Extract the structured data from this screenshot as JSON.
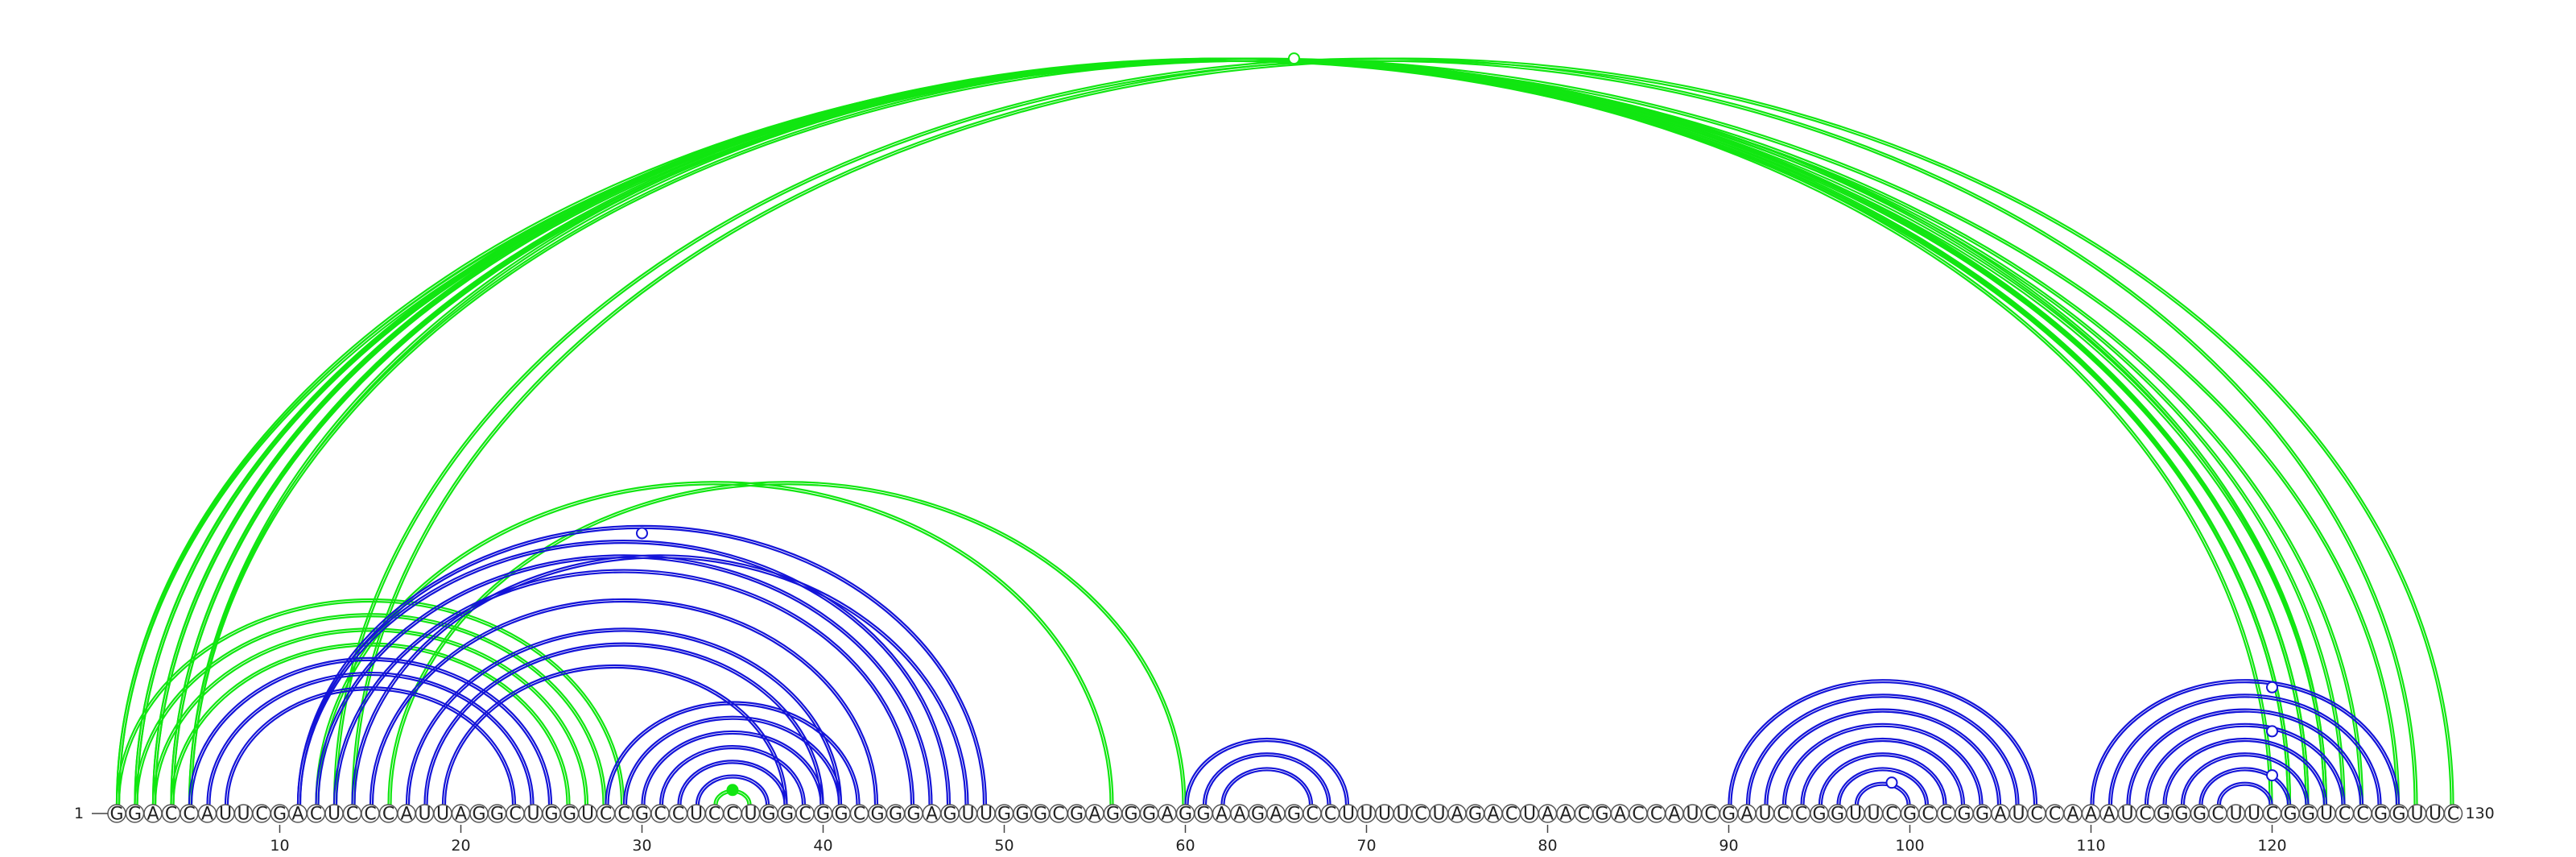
{
  "sequence": "GGACCAUUCGACUCCCAUUAGGCUGGUCCGCCUCCUGGCGGCGGGAGUUGGGCGAGGGAGGAAGAGCCUUUUCUAGACUAACGACCAUCGAUCCGGUUCGCCGGAUCCAAAUCGGGCUUCGGUCCGGUUC",
  "start_label": "1",
  "end_label": "130",
  "tick_labels": [
    "10",
    "20",
    "30",
    "40",
    "50",
    "60",
    "70",
    "80",
    "90",
    "100",
    "110",
    "120"
  ],
  "colors": {
    "green": "#11e611",
    "blue": "#1414d8"
  },
  "green_pairs": [
    [
      1,
      127
    ],
    [
      1,
      125
    ],
    [
      2,
      124
    ],
    [
      2,
      123
    ],
    [
      3,
      122
    ],
    [
      3,
      121
    ],
    [
      4,
      122
    ],
    [
      4,
      121
    ],
    [
      5,
      120
    ],
    [
      5,
      123
    ],
    [
      13,
      128
    ],
    [
      14,
      130
    ],
    [
      1,
      29
    ],
    [
      2,
      28
    ],
    [
      3,
      27
    ],
    [
      4,
      26
    ],
    [
      12,
      56
    ],
    [
      16,
      60
    ],
    [
      34,
      36
    ]
  ],
  "blue_pairs": [
    [
      5,
      25
    ],
    [
      6,
      24
    ],
    [
      7,
      23
    ],
    [
      11,
      47
    ],
    [
      12,
      46
    ],
    [
      13,
      45
    ],
    [
      15,
      43
    ],
    [
      17,
      41
    ],
    [
      18,
      40
    ],
    [
      19,
      38
    ],
    [
      11,
      49
    ],
    [
      14,
      48
    ],
    [
      28,
      42
    ],
    [
      29,
      41
    ],
    [
      30,
      40
    ],
    [
      31,
      39
    ],
    [
      32,
      38
    ],
    [
      33,
      37
    ],
    [
      60,
      69
    ],
    [
      61,
      68
    ],
    [
      62,
      67
    ],
    [
      90,
      107
    ],
    [
      91,
      106
    ],
    [
      92,
      105
    ],
    [
      93,
      104
    ],
    [
      94,
      103
    ],
    [
      95,
      102
    ],
    [
      96,
      101
    ],
    [
      97,
      100
    ],
    [
      110,
      127
    ],
    [
      111,
      126
    ],
    [
      112,
      125
    ],
    [
      113,
      124
    ],
    [
      114,
      123
    ],
    [
      115,
      122
    ],
    [
      116,
      121
    ],
    [
      117,
      120
    ]
  ],
  "markers": [
    {
      "position": 66,
      "color": "green",
      "filled": false,
      "arc": [
        1,
        129
      ]
    },
    {
      "position": 30,
      "color": "blue",
      "filled": false,
      "arc": [
        11,
        48
      ]
    },
    {
      "position": 35,
      "color": "green",
      "filled": true,
      "arc": [
        34,
        36
      ]
    },
    {
      "position": 120,
      "color": "blue",
      "filled": false,
      "arc": [
        112,
        128
      ]
    },
    {
      "position": 120,
      "color": "blue",
      "filled": false,
      "arc": [
        115,
        125
      ]
    },
    {
      "position": 120,
      "color": "blue",
      "filled": false,
      "arc": [
        118,
        122
      ]
    },
    {
      "position": 99,
      "color": "blue",
      "filled": false,
      "arc": [
        97,
        100
      ]
    }
  ]
}
